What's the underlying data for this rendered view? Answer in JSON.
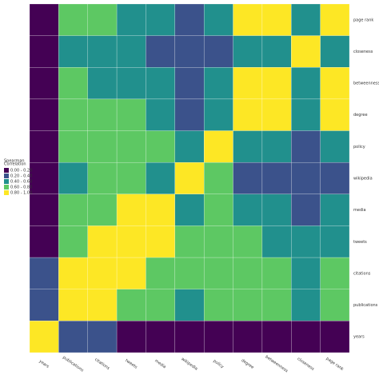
{
  "chart_data": {
    "type": "heatmap",
    "columns": [
      "years",
      "publications",
      "citations",
      "tweets",
      "media",
      "wikipedia",
      "policy",
      "degree",
      "betweenness",
      "closeness",
      "page rank"
    ],
    "rows": [
      "page rank",
      "closeness",
      "betweenness",
      "degree",
      "policy",
      "wikipedia",
      "media",
      "tweets",
      "citations",
      "publications",
      "years"
    ],
    "values": [
      [
        0.1,
        0.7,
        0.7,
        0.5,
        0.5,
        0.3,
        0.5,
        0.9,
        0.9,
        0.5,
        0.9
      ],
      [
        0.1,
        0.5,
        0.5,
        0.5,
        0.3,
        0.3,
        0.3,
        0.5,
        0.5,
        0.9,
        0.5
      ],
      [
        0.1,
        0.7,
        0.5,
        0.5,
        0.5,
        0.3,
        0.5,
        0.9,
        0.9,
        0.5,
        0.9
      ],
      [
        0.1,
        0.7,
        0.7,
        0.7,
        0.5,
        0.3,
        0.5,
        0.9,
        0.9,
        0.5,
        0.9
      ],
      [
        0.1,
        0.7,
        0.7,
        0.7,
        0.7,
        0.5,
        0.9,
        0.5,
        0.5,
        0.3,
        0.5
      ],
      [
        0.1,
        0.5,
        0.7,
        0.7,
        0.5,
        0.9,
        0.7,
        0.3,
        0.3,
        0.3,
        0.3
      ],
      [
        0.1,
        0.7,
        0.7,
        0.9,
        0.9,
        0.5,
        0.7,
        0.5,
        0.5,
        0.3,
        0.5
      ],
      [
        0.1,
        0.7,
        0.9,
        0.9,
        0.9,
        0.7,
        0.7,
        0.7,
        0.5,
        0.5,
        0.5
      ],
      [
        0.3,
        0.9,
        0.9,
        0.9,
        0.7,
        0.7,
        0.7,
        0.7,
        0.7,
        0.5,
        0.7
      ],
      [
        0.3,
        0.9,
        0.9,
        0.7,
        0.7,
        0.5,
        0.7,
        0.7,
        0.7,
        0.5,
        0.7
      ],
      [
        0.9,
        0.3,
        0.3,
        0.1,
        0.1,
        0.1,
        0.1,
        0.1,
        0.1,
        0.1,
        0.1
      ]
    ],
    "legend_title": [
      "Spearman",
      "Correlation"
    ],
    "legend_labels": [
      "0.00 - 0.20",
      "0.20 - 0.40",
      "0.40 - 0.60",
      "0.60 - 0.80",
      "0.80 - 1.00"
    ],
    "breaks": [
      0,
      0.2,
      0.4,
      0.6,
      0.8,
      1.0
    ],
    "colors": [
      "#440154",
      "#3b528b",
      "#21908d",
      "#5dc863",
      "#fde725"
    ]
  }
}
